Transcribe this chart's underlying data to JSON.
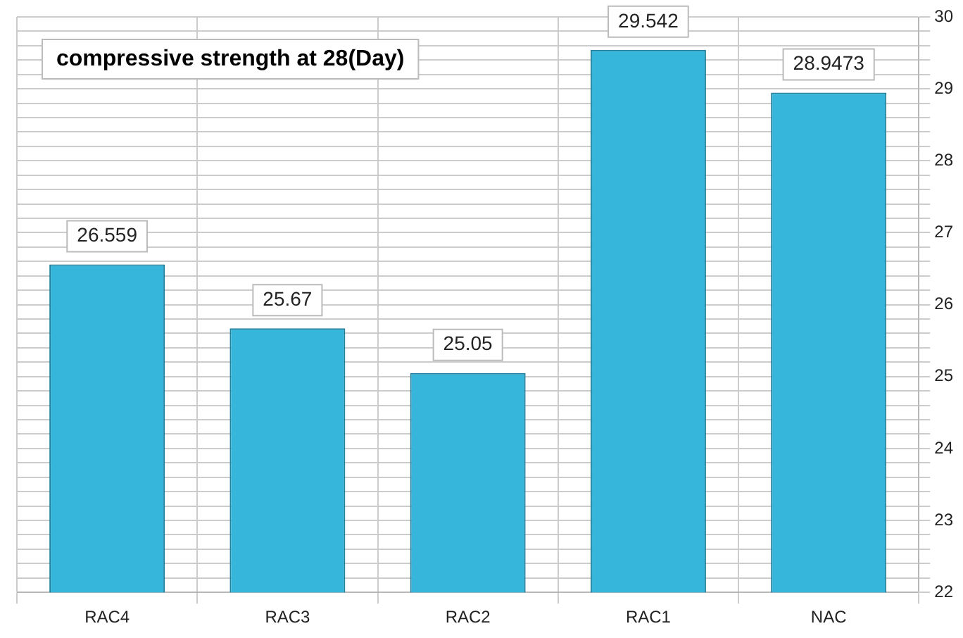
{
  "chart_data": {
    "type": "bar",
    "title": "compressive strength at 28(Day)",
    "categories": [
      "RAC4",
      "RAC3",
      "RAC2",
      "RAC1",
      "NAC"
    ],
    "values": [
      26.559,
      25.67,
      25.05,
      29.542,
      28.9473
    ],
    "value_labels": [
      "26.559",
      "25.67",
      "25.05",
      "29.542",
      "28.9473"
    ],
    "color": "#35b6da",
    "ylim": [
      22,
      30
    ],
    "yticks": [
      22,
      {
        "value": 22.2,
        "label": null
      },
      {
        "value": 22.4,
        "label": null
      },
      {
        "value": 22.6,
        "label": null
      },
      {
        "value": 22.8,
        "label": null
      },
      23,
      {
        "value": 23.2,
        "label": null
      },
      {
        "value": 23.4,
        "label": null
      },
      {
        "value": 23.6,
        "label": null
      },
      {
        "value": 23.8,
        "label": null
      },
      24,
      {
        "value": 24.2,
        "label": null
      },
      {
        "value": 24.4,
        "label": null
      },
      {
        "value": 24.6,
        "label": null
      },
      {
        "value": 24.8,
        "label": null
      },
      25,
      {
        "value": 25.2,
        "label": null
      },
      {
        "value": 25.4,
        "label": null
      },
      {
        "value": 25.6,
        "label": null
      },
      {
        "value": 25.8,
        "label": null
      },
      26,
      {
        "value": 26.2,
        "label": null
      },
      {
        "value": 26.4,
        "label": null
      },
      {
        "value": 26.6,
        "label": null
      },
      {
        "value": 26.8,
        "label": null
      },
      27,
      {
        "value": 27.2,
        "label": null
      },
      {
        "value": 27.4,
        "label": null
      },
      {
        "value": 27.6,
        "label": null
      },
      {
        "value": 27.8,
        "label": null
      },
      28,
      {
        "value": 28.2,
        "label": null
      },
      {
        "value": 28.4,
        "label": null
      },
      {
        "value": 28.6,
        "label": null
      },
      {
        "value": 28.8,
        "label": null
      },
      29,
      {
        "value": 29.2,
        "label": null
      },
      {
        "value": 29.4,
        "label": null
      },
      {
        "value": 29.6,
        "label": null
      },
      {
        "value": 29.8,
        "label": null
      },
      30
    ],
    "grid": true,
    "legend": false
  }
}
